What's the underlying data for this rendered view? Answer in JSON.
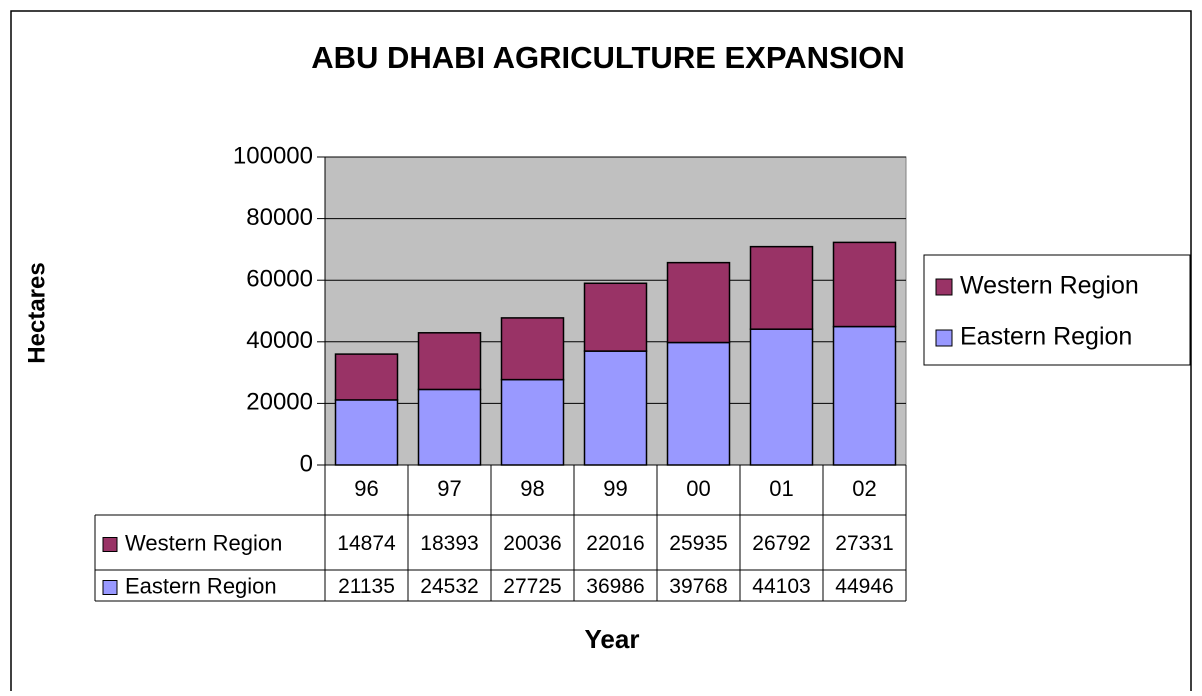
{
  "chart_data": {
    "type": "stacked_bar",
    "title": "ABU DHABI AGRICULTURE EXPANSION",
    "y_label": "Hectares",
    "x_label": "Year",
    "categories": [
      "96",
      "97",
      "98",
      "99",
      "00",
      "01",
      "02"
    ],
    "series": [
      {
        "name": "Western Region",
        "color": "#993366",
        "values": [
          14874,
          18393,
          20036,
          22016,
          25935,
          26792,
          27331
        ]
      },
      {
        "name": "Eastern Region",
        "color": "#9999ff",
        "values": [
          21135,
          24532,
          27725,
          36986,
          39768,
          44103,
          44946
        ]
      }
    ],
    "ylim": [
      0,
      100000
    ],
    "yticks": [
      0,
      20000,
      40000,
      60000,
      80000,
      100000
    ],
    "grid": true,
    "legend": "right",
    "data_table": true
  }
}
